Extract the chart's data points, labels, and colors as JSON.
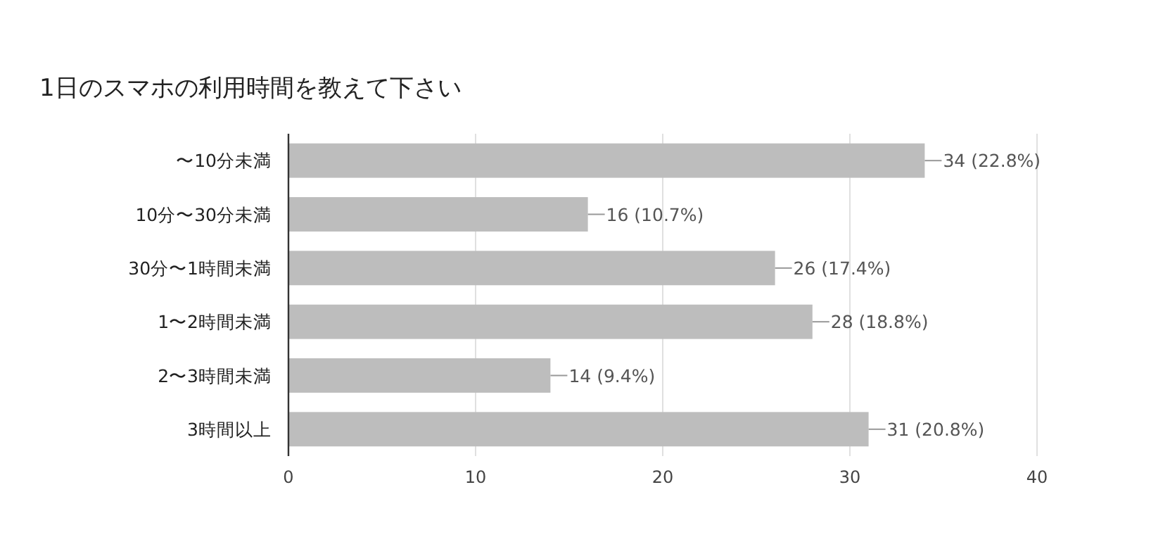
{
  "chart_data": {
    "type": "bar",
    "orientation": "horizontal",
    "title": "1日のスマホの利用時間を教えて下さい",
    "categories": [
      "〜10分未満",
      "10分〜30分未満",
      "30分〜1時間未満",
      "1〜2時間未満",
      "2〜3時間未満",
      "3時間以上"
    ],
    "values": [
      34,
      16,
      26,
      28,
      14,
      31
    ],
    "value_labels": [
      "34 (22.8%)",
      "16 (10.7%)",
      "26 (17.4%)",
      "28 (18.8%)",
      "14 (9.4%)",
      "31 (20.8%)"
    ],
    "color": "#bdbdbd",
    "xlim": [
      0,
      40
    ],
    "xticks": [
      0,
      10,
      20,
      30,
      40
    ],
    "grid": "x"
  }
}
